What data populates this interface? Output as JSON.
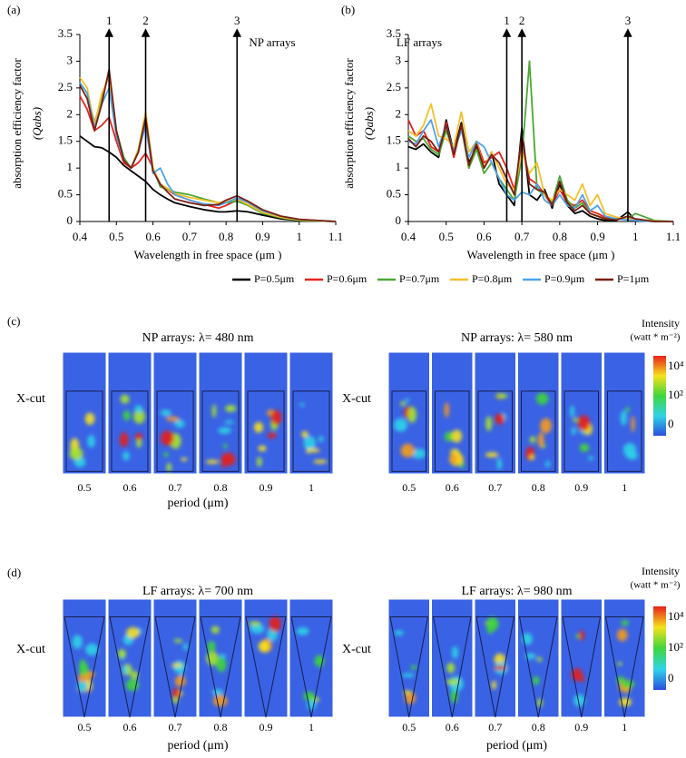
{
  "chart_data": [
    {
      "type": "line",
      "label": "(a)",
      "inset_text": "NP arrays",
      "y_label": "absorption efficiency factor",
      "y_label_symbol": "(Qabs)",
      "x_label": "Wavelength  in free space (μm )",
      "x": [
        0.4,
        0.42,
        0.44,
        0.46,
        0.48,
        0.5,
        0.52,
        0.54,
        0.56,
        0.58,
        0.6,
        0.62,
        0.64,
        0.66,
        0.7,
        0.74,
        0.78,
        0.8,
        0.83,
        0.86,
        0.9,
        0.95,
        1.0,
        1.1
      ],
      "xlim": [
        0.4,
        1.1
      ],
      "xticks": [
        0.4,
        0.5,
        0.6,
        0.7,
        0.8,
        0.9,
        1,
        1.1
      ],
      "ylim": [
        0,
        3.5
      ],
      "yticks": [
        0,
        0.5,
        1,
        1.5,
        2,
        2.5,
        3,
        3.5
      ],
      "annotations": [
        {
          "x": 0.48,
          "text": "1"
        },
        {
          "x": 0.58,
          "text": "2"
        },
        {
          "x": 0.83,
          "text": "3"
        }
      ],
      "series": [
        {
          "name": "P=0.5μm",
          "color": "#000000",
          "values": [
            1.6,
            1.5,
            1.4,
            1.38,
            1.3,
            1.2,
            1.05,
            0.95,
            0.85,
            0.75,
            0.6,
            0.5,
            0.42,
            0.35,
            0.28,
            0.22,
            0.18,
            0.18,
            0.2,
            0.18,
            0.12,
            0.05,
            0.02,
            0.0
          ]
        },
        {
          "name": "P=0.6μm",
          "color": "#e8231c",
          "values": [
            2.35,
            2.1,
            1.7,
            1.8,
            1.95,
            1.5,
            1.1,
            1.0,
            1.1,
            1.28,
            1.0,
            0.7,
            0.6,
            0.5,
            0.4,
            0.32,
            0.25,
            0.3,
            0.4,
            0.32,
            0.18,
            0.08,
            0.03,
            0.0
          ]
        },
        {
          "name": "P=0.7μm",
          "color": "#4aa832",
          "values": [
            2.6,
            2.4,
            1.85,
            2.3,
            2.8,
            1.7,
            1.2,
            1.0,
            1.3,
            1.9,
            1.0,
            0.65,
            0.6,
            0.55,
            0.5,
            0.42,
            0.35,
            0.35,
            0.38,
            0.3,
            0.15,
            0.07,
            0.02,
            0.0
          ]
        },
        {
          "name": "P=0.8μm",
          "color": "#f5c02a",
          "values": [
            2.7,
            2.5,
            1.8,
            2.4,
            2.7,
            1.6,
            1.15,
            1.0,
            1.35,
            2.05,
            1.0,
            0.7,
            0.62,
            0.52,
            0.45,
            0.4,
            0.35,
            0.38,
            0.42,
            0.32,
            0.17,
            0.08,
            0.03,
            0.0
          ]
        },
        {
          "name": "P=0.9μm",
          "color": "#4fa3e8",
          "values": [
            2.6,
            2.4,
            1.75,
            2.2,
            2.5,
            1.6,
            1.15,
            1.0,
            1.3,
            1.8,
            0.9,
            1.0,
            0.7,
            0.5,
            0.4,
            0.33,
            0.3,
            0.35,
            0.44,
            0.36,
            0.2,
            0.1,
            0.04,
            0.0
          ]
        },
        {
          "name": "P=1μm",
          "color": "#7a1f12",
          "values": [
            2.55,
            2.3,
            1.7,
            2.2,
            2.85,
            1.7,
            1.15,
            1.0,
            1.3,
            1.95,
            0.95,
            0.7,
            0.55,
            0.42,
            0.35,
            0.3,
            0.32,
            0.4,
            0.48,
            0.38,
            0.22,
            0.1,
            0.04,
            0.0
          ]
        }
      ]
    },
    {
      "type": "line",
      "label": "(b)",
      "inset_text": "LF arrays",
      "y_label": "absorption efficiency factor",
      "y_label_symbol": "(Qabs)",
      "x_label": "Wavelength  in free space (μm )",
      "x": [
        0.4,
        0.42,
        0.44,
        0.46,
        0.48,
        0.5,
        0.52,
        0.54,
        0.56,
        0.58,
        0.6,
        0.62,
        0.64,
        0.66,
        0.68,
        0.7,
        0.72,
        0.74,
        0.76,
        0.78,
        0.8,
        0.82,
        0.84,
        0.86,
        0.88,
        0.9,
        0.92,
        0.95,
        0.98,
        1.0,
        1.05,
        1.1
      ],
      "xlim": [
        0.4,
        1.1
      ],
      "xticks": [
        0.4,
        0.5,
        0.6,
        0.7,
        0.8,
        0.9,
        1,
        1.1
      ],
      "ylim": [
        0,
        3.5
      ],
      "yticks": [
        0,
        0.5,
        1,
        1.5,
        2,
        2.5,
        3,
        3.5
      ],
      "annotations": [
        {
          "x": 0.66,
          "text": "1"
        },
        {
          "x": 0.7,
          "text": "2"
        },
        {
          "x": 0.98,
          "text": "3"
        }
      ],
      "series": [
        {
          "color": "#000000",
          "values": [
            1.4,
            1.35,
            1.45,
            1.3,
            1.2,
            1.9,
            1.3,
            1.85,
            1.1,
            1.4,
            1.0,
            1.3,
            0.7,
            0.5,
            0.3,
            1.75,
            0.5,
            0.4,
            0.6,
            0.25,
            0.7,
            0.3,
            0.15,
            0.2,
            0.1,
            0.05,
            0.02,
            0.02,
            0.18,
            0.02,
            0.0,
            0.0
          ]
        },
        {
          "color": "#e8231c",
          "values": [
            1.9,
            1.6,
            1.7,
            1.4,
            1.3,
            1.85,
            1.2,
            1.8,
            1.0,
            1.5,
            1.1,
            1.2,
            1.3,
            1.0,
            0.6,
            1.35,
            0.8,
            0.7,
            0.5,
            0.3,
            0.6,
            0.35,
            0.3,
            0.4,
            0.2,
            0.15,
            0.08,
            0.05,
            0.05,
            0.04,
            0.01,
            0.0
          ]
        },
        {
          "color": "#4aa832",
          "values": [
            1.6,
            1.5,
            1.55,
            1.35,
            1.25,
            1.7,
            1.3,
            1.75,
            1.0,
            1.35,
            0.9,
            1.1,
            0.8,
            0.6,
            0.4,
            1.2,
            3.0,
            0.6,
            0.5,
            0.35,
            0.85,
            0.4,
            0.25,
            0.35,
            0.15,
            0.1,
            0.05,
            0.05,
            0.05,
            0.15,
            0.02,
            0.0
          ]
        },
        {
          "color": "#f5c02a",
          "values": [
            1.7,
            1.6,
            1.8,
            2.2,
            1.6,
            1.55,
            1.4,
            2.05,
            1.3,
            1.5,
            1.0,
            1.3,
            1.0,
            0.7,
            0.6,
            1.3,
            0.9,
            1.1,
            0.5,
            0.4,
            0.6,
            0.5,
            0.4,
            0.7,
            0.3,
            0.5,
            0.15,
            0.08,
            0.05,
            0.03,
            0.01,
            0.0
          ]
        },
        {
          "color": "#4fa3e8",
          "values": [
            1.5,
            1.45,
            1.7,
            1.9,
            1.4,
            1.8,
            1.3,
            1.7,
            1.2,
            1.5,
            1.4,
            1.1,
            0.8,
            0.5,
            0.4,
            0.55,
            0.5,
            0.7,
            0.4,
            0.3,
            0.5,
            0.3,
            0.25,
            0.5,
            0.2,
            0.3,
            0.1,
            0.05,
            0.03,
            0.02,
            0.0,
            0.0
          ]
        },
        {
          "color": "#7a1f12",
          "values": [
            1.55,
            1.4,
            1.6,
            1.5,
            1.3,
            1.8,
            1.25,
            1.8,
            1.05,
            1.45,
            1.0,
            1.25,
            1.1,
            0.8,
            0.5,
            1.6,
            0.7,
            0.6,
            0.55,
            0.3,
            0.75,
            0.35,
            0.2,
            0.3,
            0.15,
            0.1,
            0.05,
            0.03,
            0.1,
            0.05,
            0.0,
            0.0
          ]
        }
      ]
    }
  ],
  "field_maps": [
    {
      "label": "(c)",
      "colorbar": {
        "title": "Intensity",
        "unit": "(watt * m⁻²)",
        "ticks": [
          "10⁴",
          "10²",
          "0"
        ]
      },
      "panels": [
        {
          "title": "NP arrays: λ= 480 nm",
          "row_label": "X-cut",
          "periods": [
            "0.5",
            "0.6",
            "0.7",
            "0.8",
            "0.9",
            "1"
          ],
          "x_label": "period (μm)"
        },
        {
          "title": "NP arrays: λ= 580 nm",
          "row_label": "X-cut",
          "periods": [
            "0.5",
            "0.6",
            "0.7",
            "0.8",
            "0.9",
            "1"
          ]
        }
      ]
    },
    {
      "label": "(d)",
      "colorbar": {
        "title": "Intensity",
        "unit": "(watt * m⁻²)",
        "ticks": [
          "10⁴",
          "10²",
          "0"
        ]
      },
      "panels": [
        {
          "title": "LF arrays: λ= 700 nm",
          "row_label": "X-cut",
          "periods": [
            "0.5",
            "0.6",
            "0.7",
            "0.8",
            "0.9",
            "1"
          ],
          "x_label": "period (μm)"
        },
        {
          "title": "LF arrays: λ= 980 nm",
          "row_label": "X-cut",
          "periods": [
            "0.5",
            "0.6",
            "0.7",
            "0.8",
            "0.9",
            "1"
          ],
          "x_label": "period (μm)"
        }
      ]
    }
  ]
}
